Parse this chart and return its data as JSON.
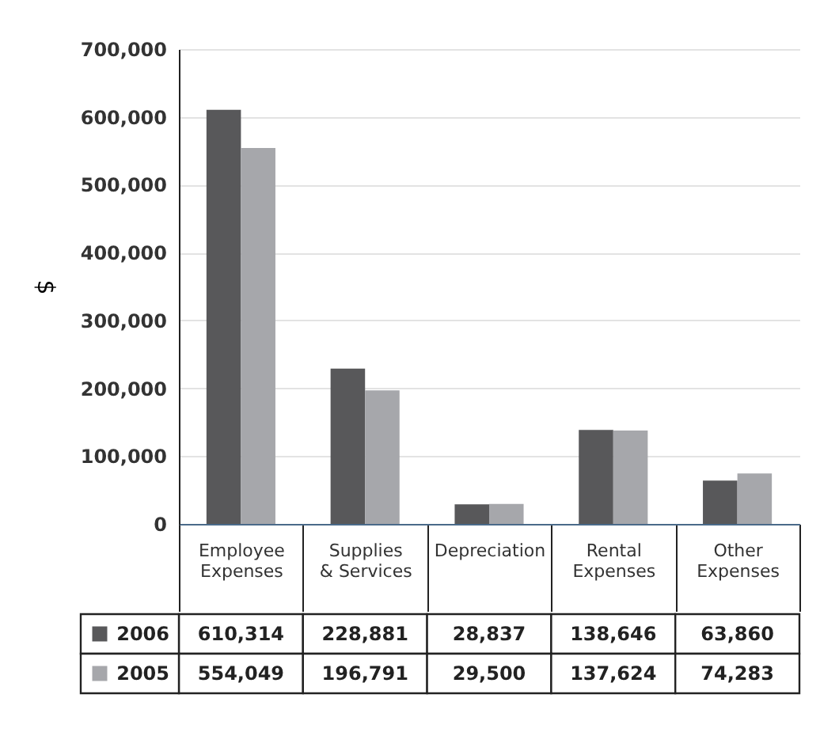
{
  "chart_data": {
    "type": "bar",
    "ylabel": "$",
    "categories": [
      "Employee Expenses",
      "Supplies & Services",
      "Depreciation",
      "Rental Expenses",
      "Other Expenses"
    ],
    "series": [
      {
        "name": "2006",
        "color": "#58585a",
        "values": [
          610314,
          228881,
          28837,
          138646,
          63860
        ],
        "value_labels": [
          "610,314",
          "228,881",
          "28,837",
          "138,646",
          "63,860"
        ]
      },
      {
        "name": "2005",
        "color": "#a6a7ab",
        "values": [
          554049,
          196791,
          29500,
          137624,
          74283
        ],
        "value_labels": [
          "554,049",
          "196,791",
          "29,500",
          "137,624",
          "74,283"
        ]
      }
    ],
    "ylim": [
      0,
      700000
    ],
    "yticks": [
      {
        "value": 0,
        "label": "0"
      },
      {
        "value": 100000,
        "label": "100,000"
      },
      {
        "value": 200000,
        "label": "200,000"
      },
      {
        "value": 300000,
        "label": "300,000"
      },
      {
        "value": 400000,
        "label": "400,000"
      },
      {
        "value": 500000,
        "label": "500,000"
      },
      {
        "value": 600000,
        "label": "600,000"
      },
      {
        "value": 700000,
        "label": "700,000"
      }
    ],
    "grid": "y",
    "legend": "bottom"
  }
}
